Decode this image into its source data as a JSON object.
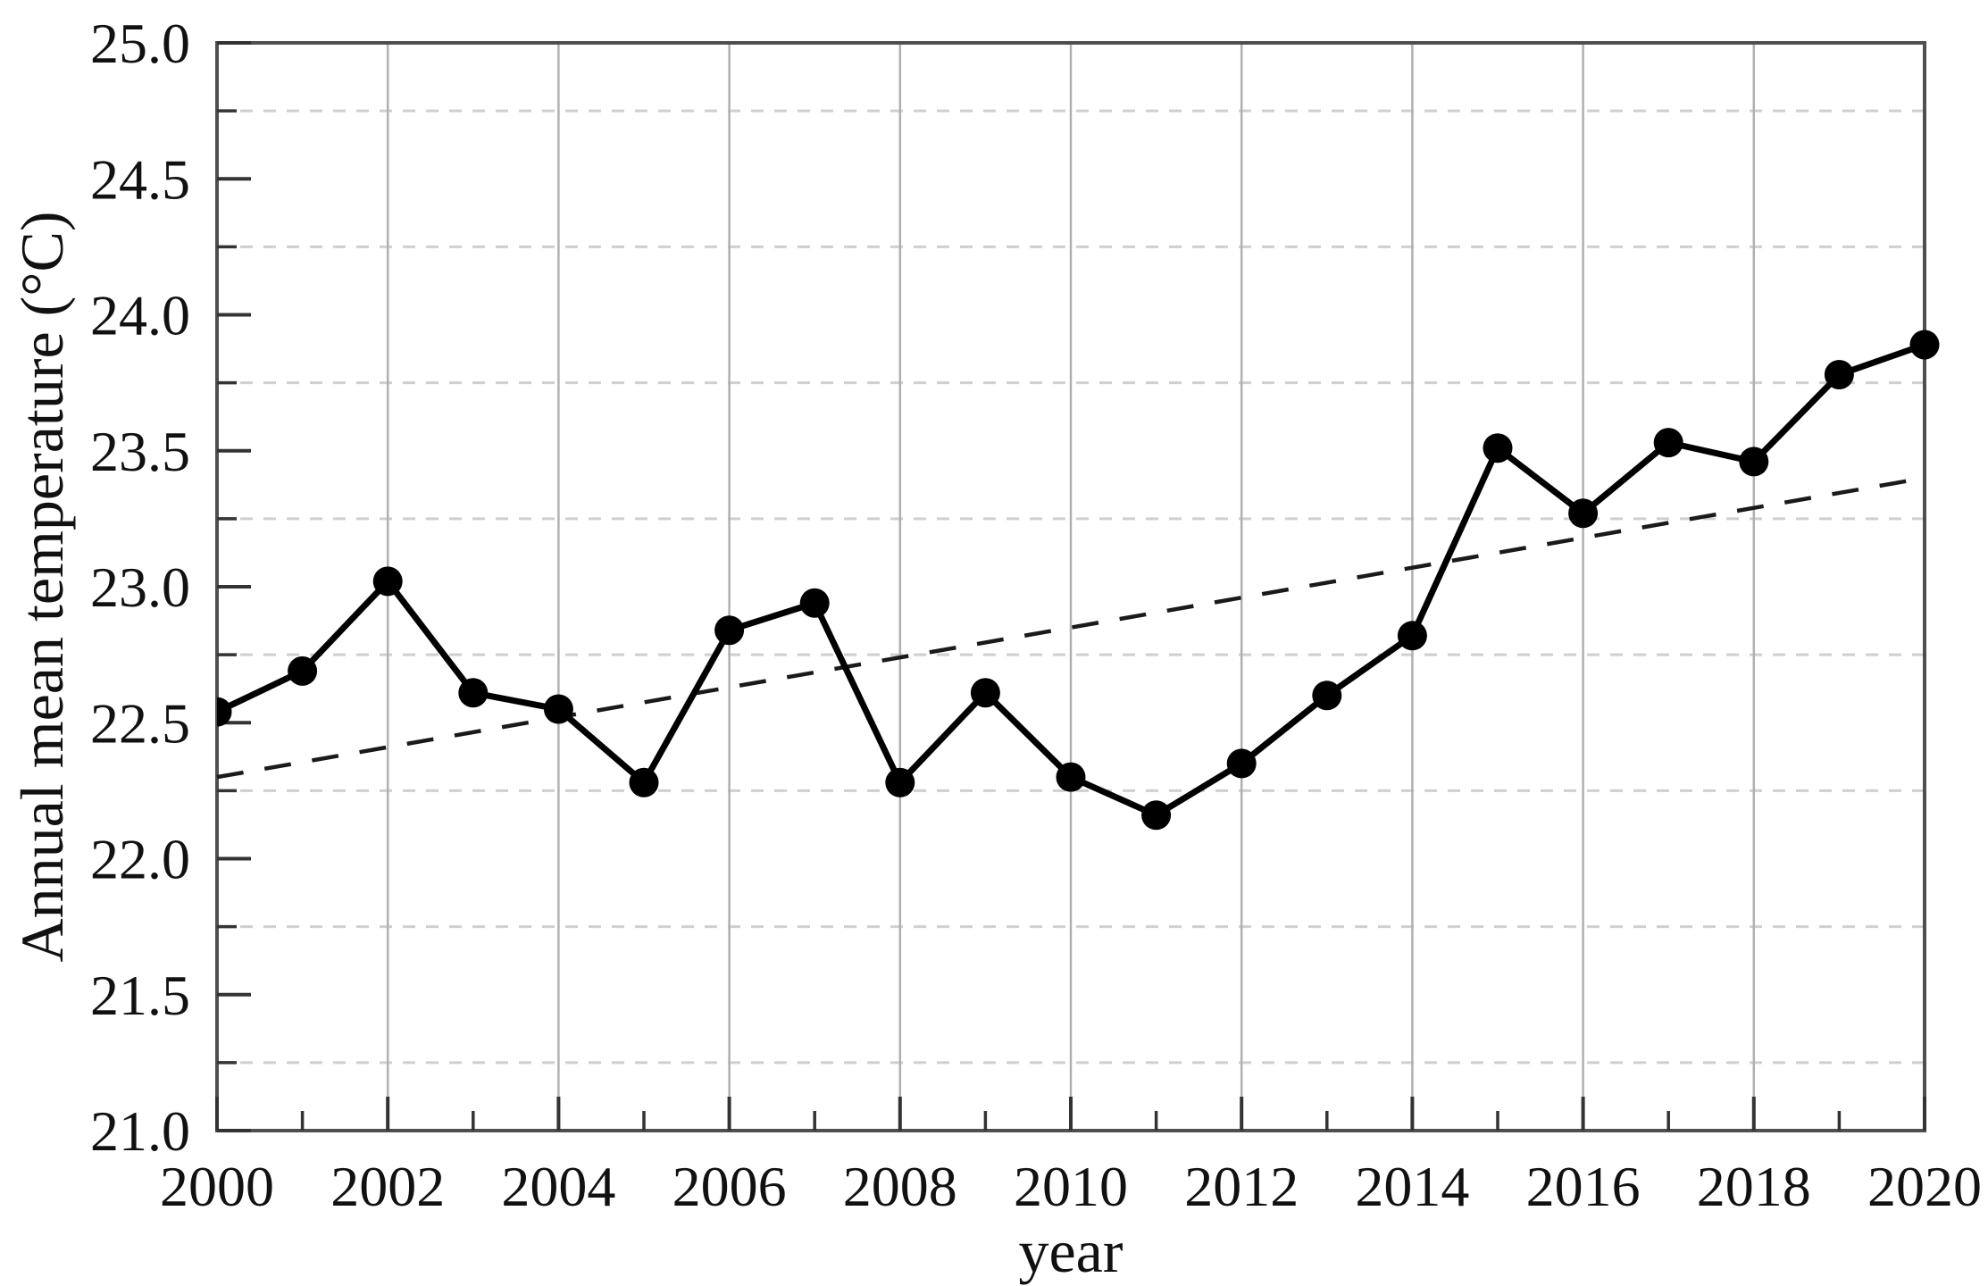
{
  "figure": {
    "x_axis_title": "year",
    "y_axis_title": "Annual mean temperature (°C)"
  },
  "chart_data": {
    "type": "line",
    "title": "",
    "xlabel": "year",
    "ylabel": "Annual mean temperature (°C)",
    "xlim": [
      2000,
      2020
    ],
    "ylim": [
      21.0,
      25.0
    ],
    "grid": {
      "vertical_solid_gridlines_at_even_years": true,
      "horizontal_dashed_gridlines_at_quarter_steps": true,
      "legend": "none"
    },
    "x_major_ticks": [
      2000,
      2002,
      2004,
      2006,
      2008,
      2010,
      2012,
      2014,
      2016,
      2018,
      2020
    ],
    "x_tick_labels": [
      "2000",
      "2002",
      "2004",
      "2006",
      "2008",
      "2010",
      "2012",
      "2014",
      "2016",
      "2018",
      "2020"
    ],
    "x_minor_ticks": [
      2001,
      2003,
      2005,
      2007,
      2009,
      2011,
      2013,
      2015,
      2017,
      2019
    ],
    "y_major_ticks": [
      21.0,
      21.5,
      22.0,
      22.5,
      23.0,
      23.5,
      24.0,
      24.5,
      25.0
    ],
    "y_tick_labels": [
      "21.0",
      "21.5",
      "22.0",
      "22.5",
      "23.0",
      "23.5",
      "24.0",
      "24.5",
      "25.0"
    ],
    "y_minor_ticks": [
      21.25,
      21.75,
      22.25,
      22.75,
      23.25,
      23.75,
      24.25,
      24.75
    ],
    "series": [
      {
        "name": "annual-mean-temperature",
        "style": "solid-line-filled-circle-markers",
        "color": "#000000",
        "x": [
          2000,
          2001,
          2002,
          2003,
          2004,
          2005,
          2006,
          2007,
          2008,
          2009,
          2010,
          2011,
          2012,
          2013,
          2014,
          2015,
          2016,
          2017,
          2018,
          2019,
          2020
        ],
        "y": [
          22.54,
          22.69,
          23.02,
          22.61,
          22.55,
          22.28,
          22.84,
          22.94,
          22.28,
          22.61,
          22.3,
          22.16,
          22.35,
          22.6,
          22.82,
          23.51,
          23.27,
          23.53,
          23.46,
          23.78,
          23.89
        ]
      },
      {
        "name": "linear-trend",
        "style": "dashed-line",
        "color": "#1a1a1a",
        "x": [
          2000,
          2020
        ],
        "y": [
          22.3,
          23.4
        ]
      }
    ],
    "colors": {
      "data_line": "#000000",
      "trend_line": "#1a1a1a",
      "frame": "#4f4f4f",
      "tick": "#333333",
      "solid_gridline": "#b0b0b0",
      "dashed_gridline": "#cfcfcf",
      "background": "#ffffff"
    }
  }
}
